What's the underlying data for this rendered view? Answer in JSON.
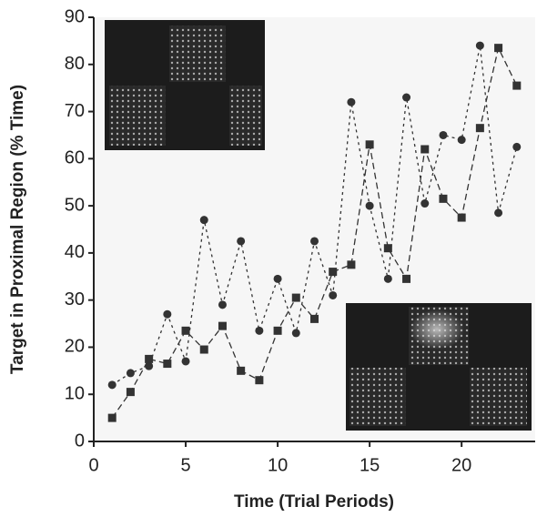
{
  "chart_data": {
    "type": "line",
    "x_label": "Time (Trial Periods)",
    "y_label": "Target in Proximal Region (% Time)",
    "x": [
      1,
      2,
      3,
      4,
      5,
      6,
      7,
      8,
      9,
      10,
      11,
      12,
      13,
      14,
      15,
      16,
      17,
      18,
      19,
      20,
      21,
      22,
      23
    ],
    "series": [
      {
        "color": "#333333",
        "marker": "circle",
        "dash": "3,4",
        "values": [
          12,
          14.5,
          16,
          27,
          17,
          47,
          29,
          42.5,
          23.5,
          34.5,
          23,
          42.5,
          31,
          72,
          50,
          34.5,
          73,
          50.5,
          65,
          64,
          84,
          48.5,
          62.5
        ]
      },
      {
        "color": "#333333",
        "marker": "square",
        "dash": "7,4",
        "values": [
          5,
          10.5,
          17.5,
          16.5,
          23.5,
          19.5,
          24.5,
          15,
          13,
          23.5,
          30.5,
          26,
          36,
          37.5,
          63,
          41,
          34.5,
          62,
          51.5,
          47.5,
          66.5,
          83.5,
          75.5
        ]
      }
    ],
    "xlim": [
      0,
      24
    ],
    "xticks": [
      0,
      5,
      10,
      15,
      20
    ],
    "ylim": [
      0,
      90
    ],
    "yticks": [
      0,
      10,
      20,
      30,
      40,
      50,
      60,
      70,
      80,
      90
    ]
  }
}
